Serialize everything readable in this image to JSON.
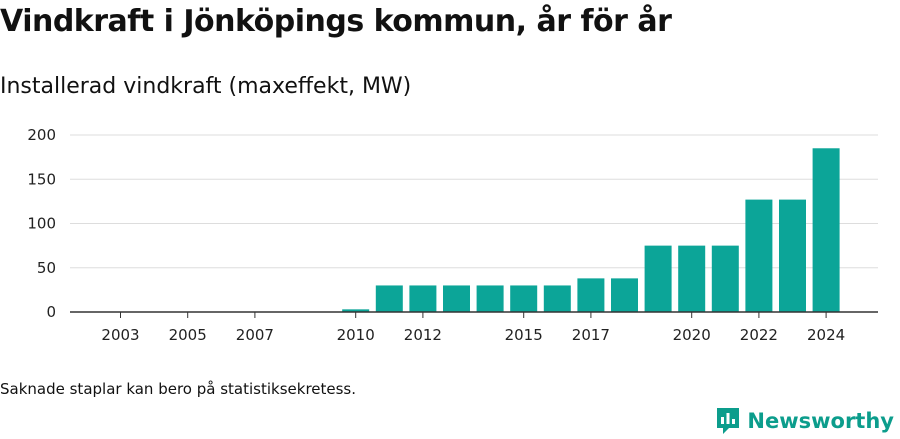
{
  "header": {
    "title": "Vindkraft i Jönköpings kommun, år för år",
    "subtitle": "Installerad vindkraft (maxeffekt, MW)"
  },
  "footer": {
    "note": "Saknade staplar kan bero på statistiksekretess.",
    "brand": "Newsworthy"
  },
  "colors": {
    "bar": "#0ca598",
    "grid": "#dddddd",
    "axis": "#333333",
    "brand": "#0c9d8c"
  },
  "icons": {
    "brand": "newsworthy-logo-icon"
  },
  "chart_data": {
    "type": "bar",
    "title": "Vindkraft i Jönköpings kommun, år för år",
    "subtitle": "Installerad vindkraft (maxeffekt, MW)",
    "categories": [
      2003,
      2004,
      2005,
      2006,
      2007,
      2008,
      2009,
      2010,
      2011,
      2012,
      2013,
      2014,
      2015,
      2016,
      2017,
      2018,
      2019,
      2020,
      2021,
      2022,
      2023,
      2024
    ],
    "values": [
      0,
      0,
      0,
      0,
      0,
      0,
      0,
      3,
      30,
      30,
      30,
      30,
      30,
      30,
      38,
      38,
      75,
      75,
      75,
      127,
      127,
      185
    ],
    "x_tick_labels": [
      "2003",
      "2005",
      "2007",
      "2010",
      "2012",
      "2015",
      "2017",
      "2020",
      "2022",
      "2024"
    ],
    "y_ticks": [
      0,
      50,
      100,
      150,
      200
    ],
    "ylim": [
      0,
      200
    ],
    "grid": true,
    "legend": "none"
  }
}
